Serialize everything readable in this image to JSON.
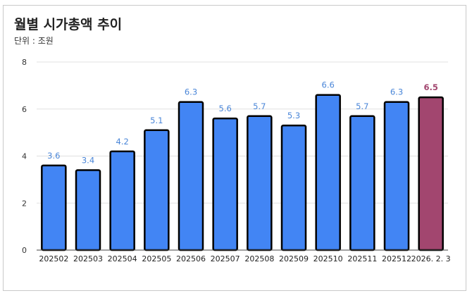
{
  "chart_data": {
    "type": "bar",
    "title": "월별 시가총액 추이",
    "subtitle": "단위 : 조원",
    "categories": [
      "202502",
      "202503",
      "202504",
      "202505",
      "202506",
      "202507",
      "202508",
      "202509",
      "202510",
      "202511",
      "202512",
      "2026. 2. 3"
    ],
    "values": [
      3.6,
      3.4,
      4.2,
      5.1,
      6.3,
      5.6,
      5.7,
      5.3,
      6.6,
      5.7,
      6.3,
      6.5
    ],
    "value_labels": [
      "3.6",
      "3.4",
      "4.2",
      "5.1",
      "6.3",
      "5.6",
      "5.7",
      "5.3",
      "6.6",
      "5.7",
      "6.3",
      "6.5"
    ],
    "highlight_index": 11,
    "ylim": [
      0,
      8
    ],
    "yticks": [
      "0",
      "2",
      "4",
      "6",
      "8"
    ],
    "grid": true,
    "legend": "none",
    "xlabel": "",
    "ylabel": "",
    "colors": {
      "bar": "#4285f4",
      "highlight_bar": "#a2466f",
      "bar_border": "#000000",
      "label": "#4a86d8",
      "highlight_label": "#a2466f",
      "grid": "#e0e0e0"
    }
  }
}
